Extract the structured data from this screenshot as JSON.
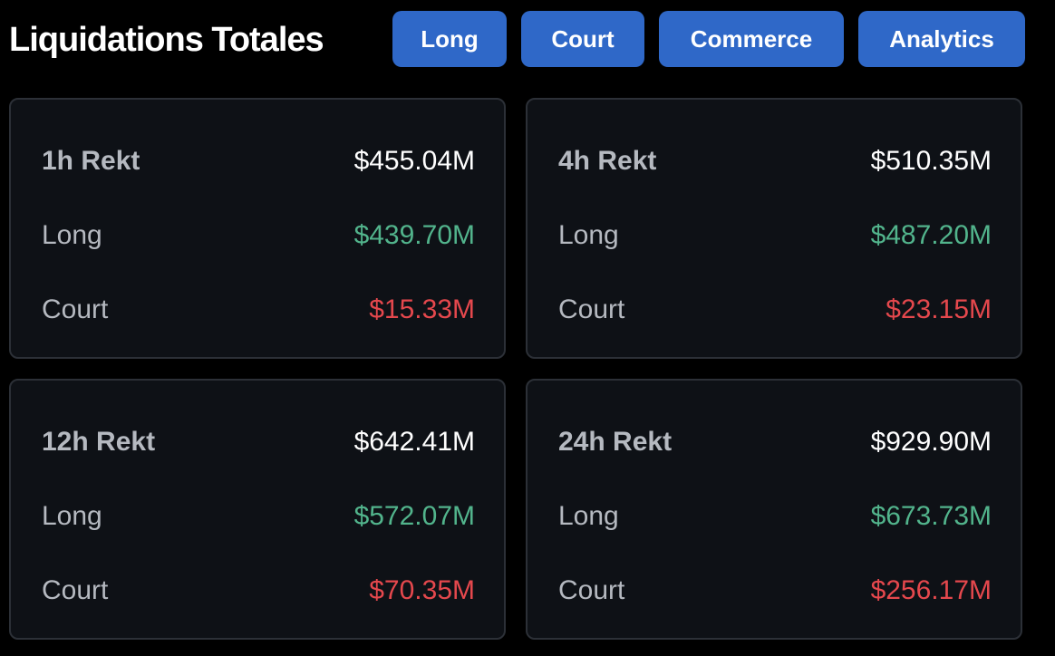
{
  "header": {
    "title": "Liquidations Totales",
    "tabs": [
      {
        "label": "Long"
      },
      {
        "label": "Court"
      },
      {
        "label": "Commerce"
      },
      {
        "label": "Analytics"
      }
    ]
  },
  "colors": {
    "background": "#000000",
    "card_bg": "#0e1116",
    "card_border": "#2c3037",
    "button_blue": "#2f68c8",
    "long_green": "#52b48c",
    "short_red": "#e5484d",
    "label_gray": "#b5b9c0"
  },
  "cards": [
    {
      "period": "1h Rekt",
      "total": "$455.04M",
      "long_label": "Long",
      "long_value": "$439.70M",
      "short_label": "Court",
      "short_value": "$15.33M"
    },
    {
      "period": "4h Rekt",
      "total": "$510.35M",
      "long_label": "Long",
      "long_value": "$487.20M",
      "short_label": "Court",
      "short_value": "$23.15M"
    },
    {
      "period": "12h Rekt",
      "total": "$642.41M",
      "long_label": "Long",
      "long_value": "$572.07M",
      "short_label": "Court",
      "short_value": "$70.35M"
    },
    {
      "period": "24h Rekt",
      "total": "$929.90M",
      "long_label": "Long",
      "long_value": "$673.73M",
      "short_label": "Court",
      "short_value": "$256.17M"
    }
  ]
}
